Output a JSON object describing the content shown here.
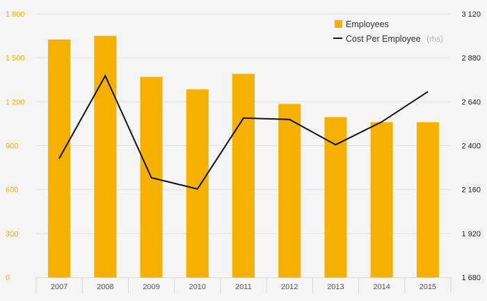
{
  "chart_data": {
    "type": "bar",
    "categories": [
      "2007",
      "2008",
      "2009",
      "2010",
      "2011",
      "2012",
      "2013",
      "2014",
      "2015"
    ],
    "series": [
      {
        "name": "Employees",
        "type": "bar",
        "axis": "left",
        "color": "#f5b000",
        "values": [
          1625,
          1650,
          1370,
          1285,
          1390,
          1185,
          1095,
          1060,
          1060
        ]
      },
      {
        "name": "Cost Per Employee",
        "name_suffix": "(rhs)",
        "type": "line",
        "axis": "right",
        "color": "#111111",
        "values": [
          2330,
          2782,
          2225,
          2163,
          2551,
          2543,
          2405,
          2530,
          2695
        ]
      }
    ],
    "y_left": {
      "lim": [
        0,
        1800
      ],
      "ticks": [
        0,
        300,
        600,
        900,
        1200,
        1500,
        1800
      ],
      "tick_labels": [
        "0",
        "300",
        "600",
        "900",
        "1 200",
        "1 500",
        "1 800"
      ]
    },
    "y_right": {
      "lim": [
        1680,
        3120
      ],
      "ticks": [
        1680,
        1920,
        2160,
        2400,
        2640,
        2880,
        3120
      ],
      "tick_labels": [
        "1 680",
        "1 920",
        "2 160",
        "2 400",
        "2 640",
        "2 880",
        "3 120"
      ]
    },
    "grid": true,
    "legend_position": "top-right"
  }
}
